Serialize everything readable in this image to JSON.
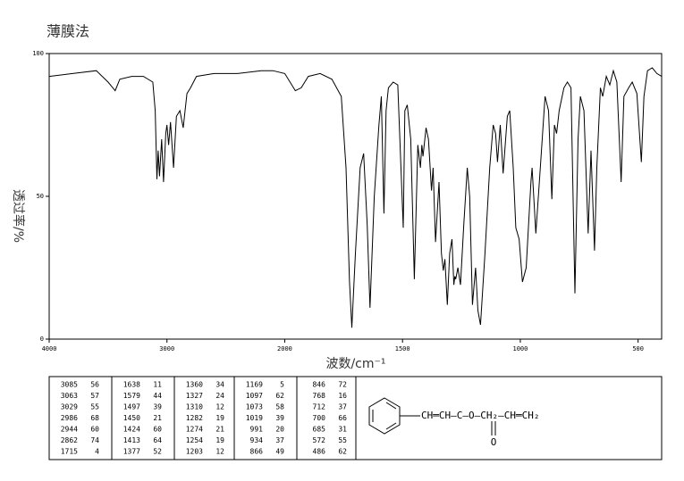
{
  "chart_data": {
    "type": "line",
    "title": "薄膜法",
    "y_label": "透过率/%",
    "x_label": "波数/cm⁻¹",
    "color": "#000000",
    "xlim": [
      4000,
      400
    ],
    "x_scale_break": 2000,
    "xticks": [
      4000,
      3000,
      2000,
      1500,
      1000,
      500
    ],
    "ylim": [
      0,
      100
    ],
    "yticks": [
      0,
      50,
      100
    ],
    "x": [
      4000,
      3800,
      3600,
      3500,
      3440,
      3400,
      3300,
      3200,
      3120,
      3100,
      3085,
      3075,
      3063,
      3045,
      3029,
      3010,
      3000,
      2986,
      2970,
      2944,
      2920,
      2890,
      2862,
      2830,
      2800,
      2750,
      2600,
      2400,
      2200,
      2100,
      2000,
      1955,
      1930,
      1900,
      1850,
      1800,
      1760,
      1740,
      1725,
      1715,
      1700,
      1680,
      1665,
      1650,
      1638,
      1620,
      1600,
      1590,
      1579,
      1570,
      1560,
      1540,
      1520,
      1497,
      1490,
      1480,
      1465,
      1450,
      1435,
      1424,
      1418,
      1413,
      1400,
      1390,
      1377,
      1370,
      1360,
      1345,
      1335,
      1327,
      1320,
      1310,
      1300,
      1290,
      1282,
      1278,
      1274,
      1265,
      1254,
      1240,
      1225,
      1215,
      1203,
      1190,
      1180,
      1169,
      1150,
      1130,
      1115,
      1105,
      1097,
      1085,
      1073,
      1055,
      1045,
      1030,
      1019,
      1005,
      991,
      975,
      955,
      950,
      934,
      915,
      895,
      880,
      866,
      855,
      846,
      835,
      815,
      800,
      785,
      768,
      755,
      745,
      730,
      712,
      700,
      685,
      675,
      660,
      650,
      635,
      620,
      605,
      590,
      572,
      560,
      540,
      525,
      505,
      486,
      475,
      460,
      440,
      420,
      400
    ],
    "values": [
      92,
      93,
      94,
      90,
      87,
      91,
      92,
      92,
      90,
      80,
      56,
      66,
      57,
      70,
      55,
      72,
      75,
      68,
      76,
      60,
      78,
      80,
      74,
      86,
      88,
      92,
      93,
      93,
      94,
      94,
      93,
      87,
      88,
      92,
      93,
      91,
      85,
      60,
      20,
      4,
      30,
      60,
      65,
      40,
      11,
      50,
      75,
      85,
      44,
      80,
      88,
      90,
      89,
      39,
      80,
      82,
      70,
      21,
      68,
      60,
      68,
      64,
      74,
      70,
      52,
      60,
      34,
      55,
      30,
      24,
      28,
      12,
      30,
      35,
      19,
      22,
      21,
      25,
      19,
      40,
      60,
      50,
      12,
      25,
      10,
      5,
      30,
      60,
      75,
      72,
      62,
      75,
      58,
      78,
      80,
      60,
      39,
      35,
      20,
      25,
      55,
      60,
      37,
      60,
      85,
      80,
      49,
      75,
      72,
      80,
      88,
      90,
      88,
      16,
      70,
      85,
      80,
      37,
      66,
      31,
      60,
      88,
      85,
      92,
      89,
      94,
      90,
      55,
      85,
      88,
      90,
      86,
      62,
      85,
      94,
      95,
      93,
      92
    ]
  },
  "peak_table": {
    "columns": [
      [
        [
          3085,
          56
        ],
        [
          3063,
          57
        ],
        [
          3029,
          55
        ],
        [
          2986,
          68
        ],
        [
          2944,
          60
        ],
        [
          2862,
          74
        ],
        [
          1715,
          4
        ]
      ],
      [
        [
          1638,
          11
        ],
        [
          1579,
          44
        ],
        [
          1497,
          39
        ],
        [
          1450,
          21
        ],
        [
          1424,
          60
        ],
        [
          1413,
          64
        ],
        [
          1377,
          52
        ]
      ],
      [
        [
          1360,
          34
        ],
        [
          1327,
          24
        ],
        [
          1310,
          12
        ],
        [
          1282,
          19
        ],
        [
          1274,
          21
        ],
        [
          1254,
          19
        ],
        [
          1203,
          12
        ]
      ],
      [
        [
          1169,
          5
        ],
        [
          1097,
          62
        ],
        [
          1073,
          58
        ],
        [
          1019,
          39
        ],
        [
          991,
          20
        ],
        [
          934,
          37
        ],
        [
          866,
          49
        ]
      ],
      [
        [
          846,
          72
        ],
        [
          768,
          16
        ],
        [
          712,
          37
        ],
        [
          700,
          66
        ],
        [
          685,
          31
        ],
        [
          572,
          55
        ],
        [
          486,
          62
        ]
      ]
    ]
  },
  "structure": {
    "chain": "CH═CH—C—O—CH₂—CH═CH₂",
    "carbonyl": "O"
  }
}
